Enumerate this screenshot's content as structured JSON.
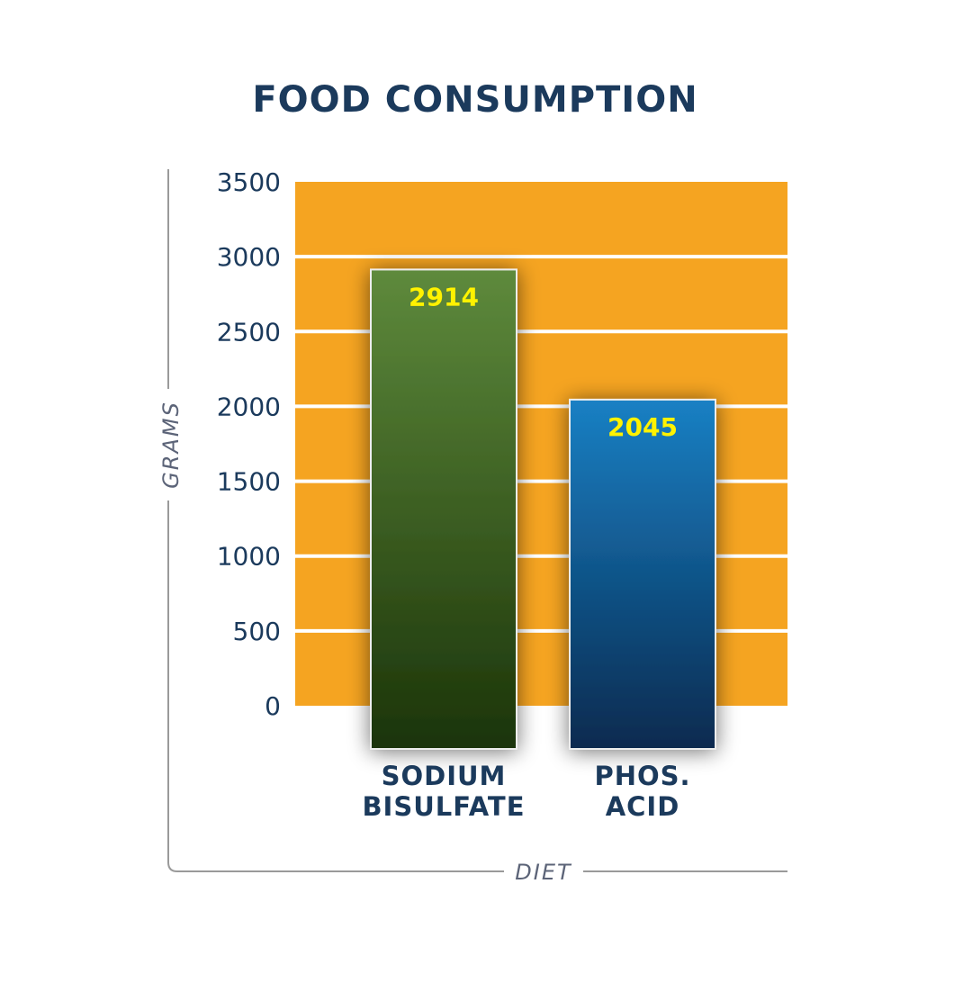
{
  "chart_data": {
    "type": "bar",
    "title": "FOOD CONSUMPTION",
    "xlabel": "DIET",
    "ylabel": "GRAMS",
    "categories": [
      [
        "SODIUM",
        "BISULFATE"
      ],
      [
        "PHOS.",
        "ACID"
      ]
    ],
    "values": [
      2914,
      2045
    ],
    "data_labels": [
      "2914",
      "2045"
    ],
    "ylim": [
      0,
      3500
    ],
    "yticks": [
      0,
      500,
      1000,
      1500,
      2000,
      2500,
      3000,
      3500
    ],
    "grid": true,
    "legend": "none",
    "colors": {
      "plot_background": "#F5A421",
      "gridline": "#FFFFFF",
      "title": "#1B3A5C",
      "tick_label": "#1B3A5C",
      "axis_label": "#5C6478",
      "axis_line": "#9A9A9A",
      "data_label": "#FFF200",
      "bars": [
        {
          "top": "#5E8A3C",
          "bottom": "#1B3409"
        },
        {
          "top": "#1A80C4",
          "bottom": "#072A4F"
        }
      ]
    }
  }
}
